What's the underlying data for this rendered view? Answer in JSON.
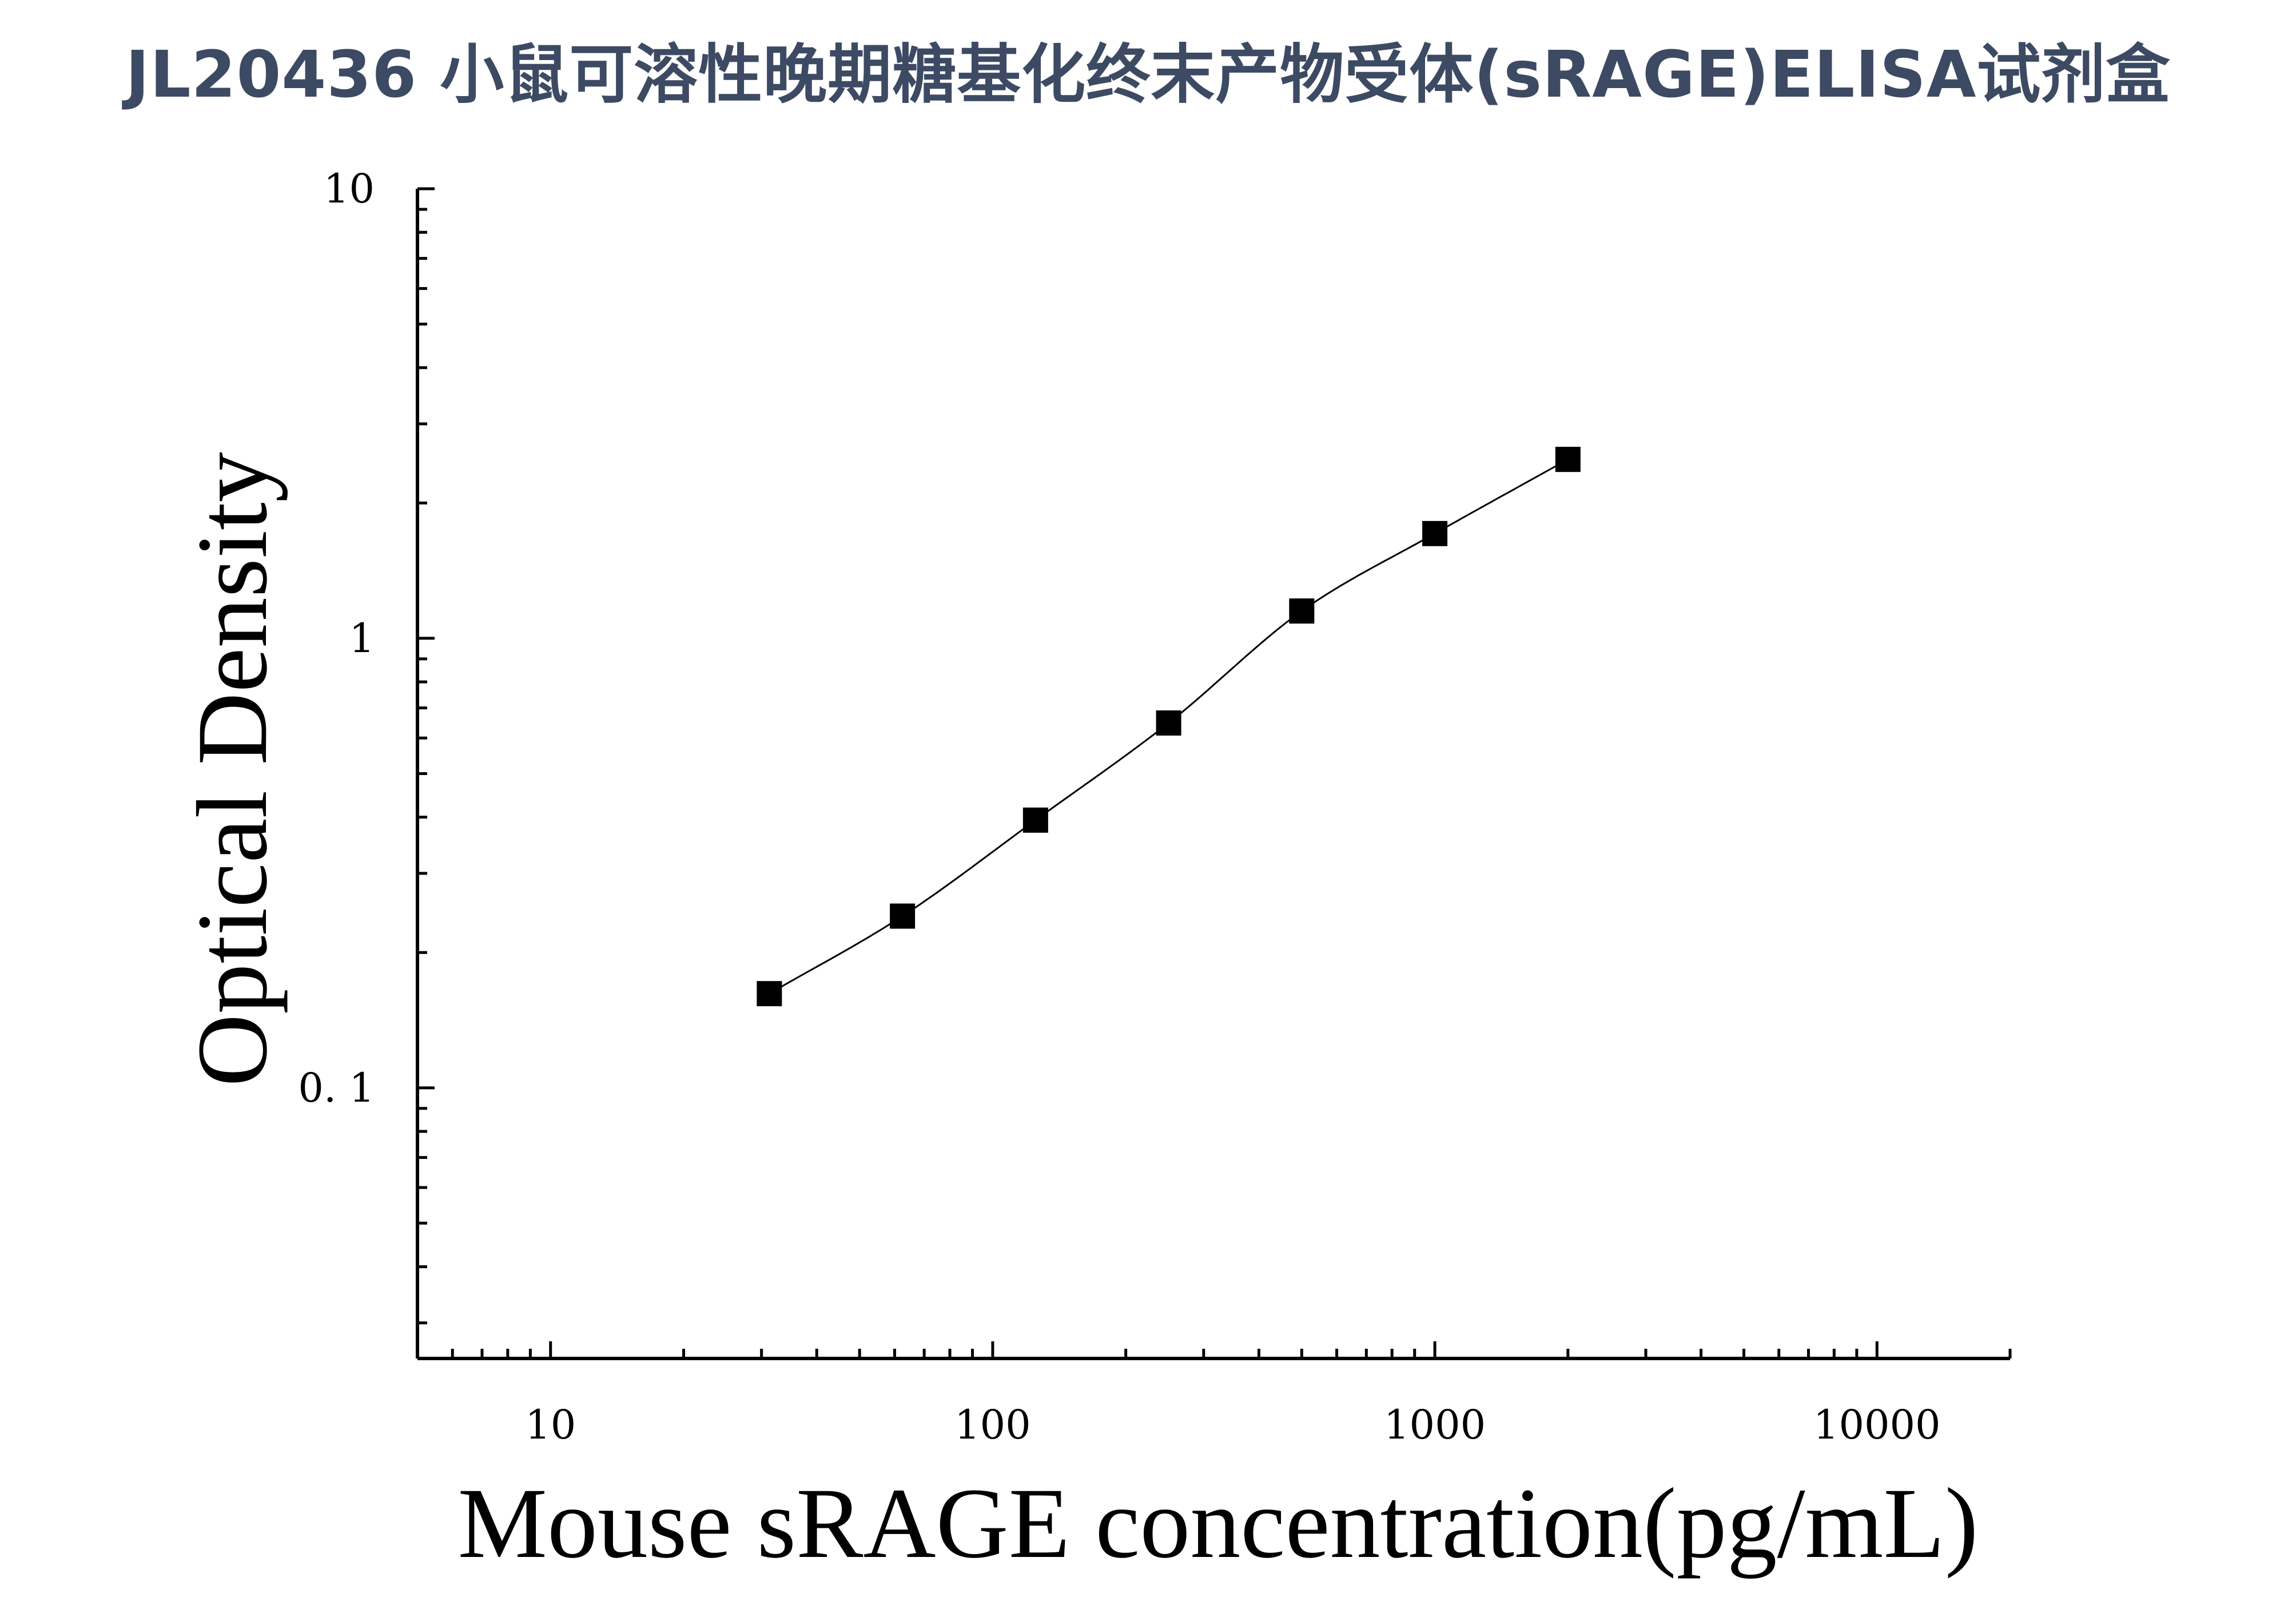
{
  "chart_data": {
    "type": "scatter",
    "title": "JL20436 小鼠可溶性晚期糖基化终末产物受体(sRAGE)ELISA试剂盒",
    "xlabel": "Mouse sRAGE concentration(pg/mL)",
    "ylabel": "Optical Density",
    "x_scale": "log",
    "y_scale": "log",
    "xlim": [
      5,
      20000
    ],
    "ylim": [
      0.025,
      10
    ],
    "x_ticks": [
      10,
      100,
      1000,
      10000
    ],
    "x_tick_labels": [
      "10",
      "100",
      "1000",
      "10000"
    ],
    "y_ticks": [
      0.1,
      1,
      10
    ],
    "y_tick_labels": [
      "0. 1",
      "1",
      "10"
    ],
    "grid": false,
    "legend": false,
    "marker": "square",
    "fit_curve": true,
    "colors": {
      "points": "#000000",
      "curve": "#000000",
      "title": "#3d4a63"
    },
    "series": [
      {
        "x": [
          31.25,
          62.5,
          125,
          250,
          500,
          1000,
          2000
        ],
        "y": [
          0.162,
          0.241,
          0.394,
          0.648,
          1.15,
          1.71,
          2.5
        ]
      }
    ]
  }
}
